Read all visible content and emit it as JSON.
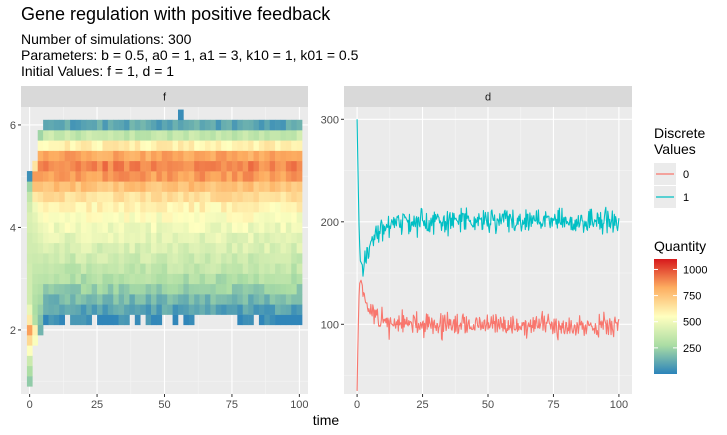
{
  "chart_data": {
    "type": "heatmap+line",
    "title": "Gene regulation with positive feedback",
    "subtitle_lines": [
      "Number of simulations: 300",
      "Parameters: b = 0.5, a0 = 1, a1 = 3, k10 = 1, k01 = 0.5",
      "Initial Values: f = 1, d = 1"
    ],
    "xlabel": "time",
    "panels": [
      {
        "strip": "f",
        "type": "heatmap",
        "xlim": [
          -3.2,
          103.2
        ],
        "ylim": [
          0.75,
          6.35
        ],
        "x_ticks": [
          0,
          25,
          50,
          75,
          100
        ],
        "y_ticks": [
          2,
          4,
          6
        ],
        "time_step": 2,
        "cell_height": 0.2,
        "fill_scale": {
          "title": "Quantity",
          "min": 0,
          "max": 1100,
          "breaks": [
            250,
            500,
            750,
            1000
          ],
          "colors": [
            "#2b83ba",
            "#abdda4",
            "#ffffbf",
            "#fdae61",
            "#d7191c"
          ]
        },
        "startup_columns": [
          {
            "t": 0,
            "cells": [
              [
                1,
                220
              ],
              [
                1.2,
                280
              ],
              [
                1.4,
                380
              ],
              [
                1.6,
                540
              ],
              [
                1.8,
                680
              ],
              [
                2,
                850
              ],
              [
                2.2,
                620
              ],
              [
                2.4,
                480
              ],
              [
                2.6,
                400
              ],
              [
                2.8,
                400
              ],
              [
                3,
                400
              ],
              [
                3.2,
                400
              ],
              [
                3.4,
                390
              ],
              [
                3.6,
                400
              ],
              [
                3.8,
                400
              ],
              [
                4,
                420
              ],
              [
                4.2,
                430
              ],
              [
                4.4,
                400
              ],
              [
                4.6,
                350
              ],
              [
                4.8,
                250
              ],
              [
                5,
                40
              ]
            ]
          },
          {
            "t": 2,
            "cells": [
              [
                1.8,
                530
              ],
              [
                2,
                600
              ],
              [
                2.2,
                300
              ],
              [
                2.4,
                280
              ],
              [
                2.6,
                300
              ],
              [
                2.8,
                320
              ],
              [
                3,
                340
              ],
              [
                3.2,
                360
              ],
              [
                3.4,
                380
              ],
              [
                3.6,
                400
              ],
              [
                3.8,
                420
              ],
              [
                4,
                440
              ],
              [
                4.2,
                460
              ],
              [
                4.4,
                500
              ],
              [
                4.6,
                620
              ],
              [
                4.8,
                760
              ],
              [
                5,
                860
              ],
              [
                5.2,
                640
              ]
            ]
          },
          {
            "t": 4,
            "cells": [
              [
                2,
                150
              ],
              [
                2.2,
                190
              ],
              [
                2.4,
                230
              ],
              [
                2.6,
                270
              ],
              [
                2.8,
                300
              ],
              [
                3,
                330
              ],
              [
                3.2,
                360
              ],
              [
                3.4,
                390
              ],
              [
                3.6,
                420
              ],
              [
                3.8,
                450
              ],
              [
                4,
                480
              ],
              [
                4.2,
                520
              ],
              [
                4.4,
                570
              ],
              [
                4.6,
                650
              ],
              [
                4.8,
                760
              ],
              [
                5,
                860
              ],
              [
                5.2,
                900
              ],
              [
                5.4,
                820
              ],
              [
                5.6,
                560
              ],
              [
                5.8,
                250
              ]
            ]
          }
        ],
        "steady_profile": [
          [
            2.2,
            20
          ],
          [
            2.4,
            95
          ],
          [
            2.6,
            165
          ],
          [
            2.8,
            235
          ],
          [
            3,
            295
          ],
          [
            3.2,
            345
          ],
          [
            3.4,
            385
          ],
          [
            3.6,
            425
          ],
          [
            3.8,
            460
          ],
          [
            4,
            500
          ],
          [
            4.2,
            540
          ],
          [
            4.4,
            590
          ],
          [
            4.6,
            660
          ],
          [
            4.8,
            760
          ],
          [
            5,
            860
          ],
          [
            5.2,
            905
          ],
          [
            5.4,
            835
          ],
          [
            5.6,
            600
          ],
          [
            5.8,
            355
          ],
          [
            6,
            110
          ]
        ],
        "steady_t_range": [
          6,
          100
        ],
        "visible_gaps": [
          {
            "t": 14,
            "y": 2.2
          },
          {
            "t": 24,
            "y": 2.2
          },
          {
            "t": 38,
            "y": 2.2
          },
          {
            "t": 42,
            "y": 2.2
          },
          {
            "t": 50,
            "y": 2.2
          },
          {
            "t": 52,
            "y": 2.2
          },
          {
            "t": 56,
            "y": 2.2
          },
          {
            "t": 62,
            "y": 2.2
          },
          {
            "t": 64,
            "y": 2.2
          },
          {
            "t": 66,
            "y": 2.2
          },
          {
            "t": 68,
            "y": 2.2
          },
          {
            "t": 70,
            "y": 2.2
          },
          {
            "t": 72,
            "y": 2.2
          },
          {
            "t": 74,
            "y": 2.2
          },
          {
            "t": 76,
            "y": 2.2
          },
          {
            "t": 80,
            "y": 2.2
          },
          {
            "t": 84,
            "y": 2.2
          }
        ],
        "extra_cells": [
          {
            "t": 56,
            "y": 6.2,
            "value": 30
          },
          {
            "t": 80,
            "y": 2.2,
            "value": 40
          }
        ]
      },
      {
        "strip": "d",
        "type": "line",
        "xlim": [
          -5,
          105
        ],
        "ylim": [
          32,
          312
        ],
        "x_ticks": [
          0,
          25,
          50,
          75,
          100
        ],
        "y_ticks": [
          100,
          200,
          300
        ],
        "color_legend": {
          "title": "Discrete Values",
          "entries": [
            {
              "label": "0",
              "color": "#F8766D"
            },
            {
              "label": "1",
              "color": "#00BFC4"
            }
          ]
        },
        "series": [
          {
            "name": "0",
            "color": "#F8766D",
            "anchors": [
              [
                0,
                35
              ],
              [
                0.3,
                80
              ],
              [
                0.7,
                125
              ],
              [
                1,
                140
              ],
              [
                1.5,
                143
              ],
              [
                2,
                138
              ],
              [
                3,
                128
              ],
              [
                4,
                118
              ],
              [
                6,
                108
              ],
              [
                10,
                102
              ],
              [
                20,
                100
              ],
              [
                40,
                99
              ],
              [
                70,
                99
              ],
              [
                100,
                99
              ]
            ],
            "noise_amplitude": 8,
            "seed": 11
          },
          {
            "name": "1",
            "color": "#00BFC4",
            "anchors": [
              [
                0,
                300
              ],
              [
                0.4,
                240
              ],
              [
                0.8,
                190
              ],
              [
                1.2,
                162
              ],
              [
                2,
                158
              ],
              [
                3,
                163
              ],
              [
                4,
                172
              ],
              [
                6,
                182
              ],
              [
                8,
                190
              ],
              [
                12,
                196
              ],
              [
                20,
                199
              ],
              [
                40,
                201
              ],
              [
                70,
                201
              ],
              [
                100,
                201
              ]
            ],
            "noise_amplitude": 8,
            "seed": 23
          }
        ]
      }
    ]
  }
}
